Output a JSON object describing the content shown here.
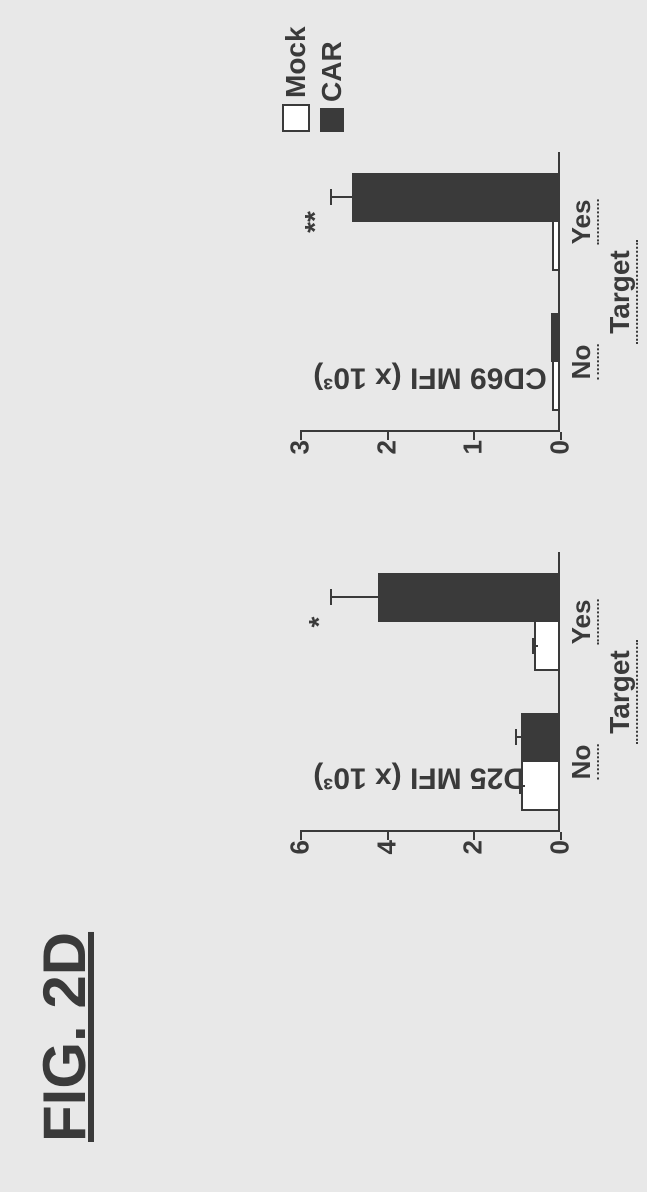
{
  "figure_title": "FIG. 2D",
  "colors": {
    "background": "#e8e8e8",
    "axis": "#3a3a3a",
    "text": "#3a3a3a",
    "mock_fill": "#ffffff",
    "mock_border": "#3a3a3a",
    "car_fill": "#3a3a3a"
  },
  "legend": {
    "items": [
      {
        "label": "Mock",
        "series": "mock"
      },
      {
        "label": "CAR",
        "series": "car"
      }
    ]
  },
  "charts": [
    {
      "id": "cd25",
      "type": "bar",
      "ylabel": "CD25 MFI (x 10³)",
      "ylim": [
        0,
        6
      ],
      "ytick_step": 2,
      "xlabel": "Target",
      "categories": [
        "No",
        "Yes"
      ],
      "series": [
        {
          "name": "mock",
          "values": [
            0.8,
            0.5
          ],
          "errors": [
            0.15,
            0.15
          ]
        },
        {
          "name": "car",
          "values": [
            0.9,
            4.2
          ],
          "errors": [
            0.15,
            1.1
          ]
        }
      ],
      "significance": {
        "category": "Yes",
        "label": "*",
        "y": 5.6
      },
      "bar_width": 0.35,
      "label_fontsize": 30
    },
    {
      "id": "cd69",
      "type": "bar",
      "ylabel": "CD69 MFI (x 10³)",
      "ylim": [
        0,
        3
      ],
      "ytick_step": 1,
      "xlabel": "Target",
      "categories": [
        "No",
        "Yes"
      ],
      "series": [
        {
          "name": "mock",
          "values": [
            0.05,
            0.05
          ],
          "errors": [
            0.0,
            0.0
          ]
        },
        {
          "name": "car",
          "values": [
            0.1,
            2.4
          ],
          "errors": [
            0.0,
            0.25
          ]
        }
      ],
      "significance": {
        "category": "Yes",
        "label": "**",
        "y": 2.85
      },
      "bar_width": 0.35,
      "label_fontsize": 30
    }
  ]
}
